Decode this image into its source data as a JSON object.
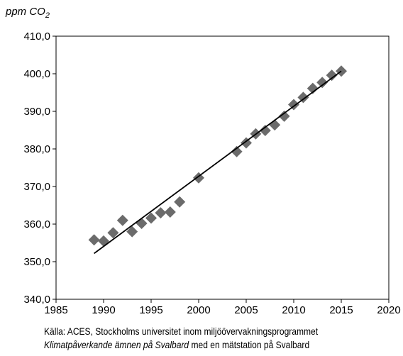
{
  "chart_data": {
    "type": "scatter",
    "ylabel_text": "ppm CO",
    "ylabel_subscript": "2",
    "xlim": [
      1985,
      2020
    ],
    "ylim": [
      340,
      410
    ],
    "x_ticks": [
      1985,
      1990,
      1995,
      2000,
      2005,
      2010,
      2015,
      2020
    ],
    "y_ticks": [
      "340,0",
      "350,0",
      "360,0",
      "370,0",
      "380,0",
      "390,0",
      "400,0",
      "410,0"
    ],
    "y_tick_values": [
      340,
      350,
      360,
      370,
      380,
      390,
      400,
      410
    ],
    "grid": false,
    "colors": {
      "marker": "#6b6b6b",
      "trend": "#000000",
      "axis": "#000000"
    },
    "series": [
      {
        "marker": "diamond",
        "points": [
          [
            1989,
            355.8
          ],
          [
            1990,
            355.5
          ],
          [
            1991,
            357.7
          ],
          [
            1992,
            361.0
          ],
          [
            1993,
            358.0
          ],
          [
            1994,
            360.2
          ],
          [
            1995,
            361.6
          ],
          [
            1996,
            363.0
          ],
          [
            1997,
            363.2
          ],
          [
            1998,
            365.9
          ],
          [
            2000,
            372.3
          ],
          [
            2004,
            379.3
          ],
          [
            2005,
            381.6
          ],
          [
            2006,
            384.0
          ],
          [
            2007,
            384.9
          ],
          [
            2008,
            386.4
          ],
          [
            2009,
            388.7
          ],
          [
            2010,
            391.8
          ],
          [
            2011,
            393.7
          ],
          [
            2012,
            396.1
          ],
          [
            2013,
            397.7
          ],
          [
            2014,
            399.6
          ],
          [
            2015,
            400.7
          ]
        ]
      }
    ],
    "trendline": {
      "x": [
        1989,
        2015
      ],
      "y": [
        352.2,
        400.7
      ]
    }
  },
  "caption": {
    "line1": "Källa:  ACES, Stockholms universitet inom miljöövervakningsprogrammet",
    "line2_italic": "Klimatpåverkande ämnen på Svalbard",
    "line2_rest": " med en mätstation på Svalbard"
  }
}
